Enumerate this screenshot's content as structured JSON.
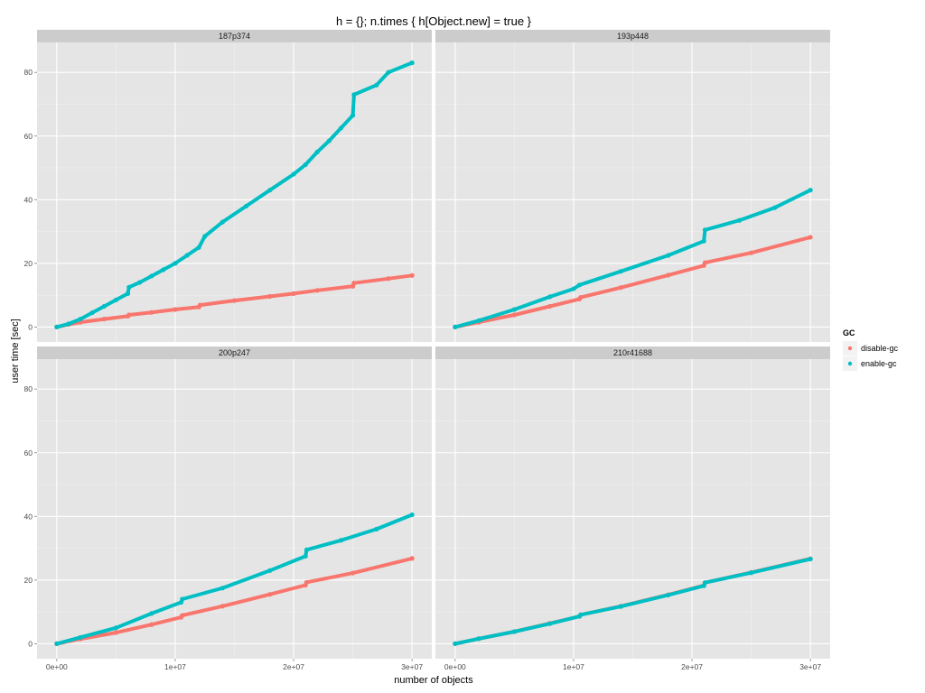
{
  "chart_data": {
    "type": "scatter",
    "title": "h = {}; n.times { h[Object.new] = true }",
    "xlabel": "number of objects",
    "ylabel": "user time [sec]",
    "xlim": [
      0,
      30000000
    ],
    "ylim": [
      0,
      90
    ],
    "x_ticks": [
      0,
      10000000,
      20000000,
      30000000
    ],
    "x_tick_labels": [
      "0e+00",
      "1e+07",
      "2e+07",
      "3e+07"
    ],
    "y_ticks": [
      0,
      20,
      40,
      60,
      80
    ],
    "y_tick_labels": [
      "0",
      "20",
      "40",
      "60",
      "80"
    ],
    "grid": true,
    "legend": {
      "title": "GC",
      "position": "right",
      "entries": [
        {
          "name": "disable-gc",
          "color": "#F8766D"
        },
        {
          "name": "enable-gc",
          "color": "#00BFC4"
        }
      ]
    },
    "facets": [
      {
        "label": "187p374",
        "series": [
          {
            "name": "disable-gc",
            "color": "#F8766D",
            "x": [
              0,
              1000000,
              2000000,
              4000000,
              6000000,
              6100000,
              8000000,
              10000000,
              12000000,
              12100000,
              15000000,
              18000000,
              20000000,
              22000000,
              25000000,
              25100000,
              28000000,
              30000000
            ],
            "y": [
              0,
              0.8,
              1.5,
              2.5,
              3.4,
              3.8,
              4.6,
              5.5,
              6.3,
              6.9,
              8.3,
              9.6,
              10.5,
              11.5,
              12.8,
              13.8,
              15.2,
              16.2
            ]
          },
          {
            "name": "enable-gc",
            "color": "#00BFC4",
            "x": [
              0,
              1000000,
              2000000,
              3000000,
              4000000,
              5000000,
              6000000,
              6100000,
              7000000,
              8000000,
              9000000,
              10000000,
              11000000,
              12000000,
              12500000,
              14000000,
              16000000,
              18000000,
              20000000,
              21000000,
              22000000,
              23000000,
              24000000,
              25000000,
              25100000,
              27000000,
              28000000,
              30000000
            ],
            "y": [
              0,
              1.0,
              2.5,
              4.5,
              6.5,
              8.5,
              10.5,
              12.5,
              14.0,
              16.0,
              18.0,
              20.0,
              22.5,
              25.0,
              28.5,
              33.0,
              38.0,
              43.0,
              48.0,
              51.0,
              55.0,
              58.5,
              62.5,
              66.5,
              73.0,
              76.0,
              80.0,
              83.0
            ]
          }
        ]
      },
      {
        "label": "193p448",
        "series": [
          {
            "name": "disable-gc",
            "color": "#F8766D",
            "x": [
              0,
              2000000,
              5000000,
              8000000,
              10500000,
              10600000,
              14000000,
              18000000,
              21000000,
              21100000,
              25000000,
              30000000
            ],
            "y": [
              0,
              1.5,
              3.8,
              6.5,
              8.8,
              9.3,
              12.4,
              16.3,
              19.3,
              20.2,
              23.3,
              28.2
            ]
          },
          {
            "name": "enable-gc",
            "color": "#00BFC4",
            "x": [
              0,
              2000000,
              5000000,
              8000000,
              10000000,
              10500000,
              14000000,
              18000000,
              21000000,
              21100000,
              24000000,
              27000000,
              30000000
            ],
            "y": [
              0,
              2.0,
              5.5,
              9.5,
              12.0,
              13.2,
              17.5,
              22.5,
              27.0,
              30.5,
              33.5,
              37.5,
              43.0
            ]
          }
        ]
      },
      {
        "label": "200p247",
        "series": [
          {
            "name": "disable-gc",
            "color": "#F8766D",
            "x": [
              0,
              2000000,
              5000000,
              8000000,
              10500000,
              10600000,
              14000000,
              18000000,
              21000000,
              21100000,
              25000000,
              30000000
            ],
            "y": [
              0,
              1.5,
              3.5,
              6.0,
              8.3,
              8.9,
              11.8,
              15.5,
              18.4,
              19.3,
              22.2,
              26.8
            ]
          },
          {
            "name": "enable-gc",
            "color": "#00BFC4",
            "x": [
              0,
              2000000,
              5000000,
              8000000,
              10500000,
              10600000,
              14000000,
              18000000,
              21000000,
              21100000,
              24000000,
              27000000,
              30000000
            ],
            "y": [
              0,
              2.0,
              5.0,
              9.5,
              13.0,
              14.0,
              17.5,
              23.0,
              27.5,
              29.5,
              32.5,
              36.0,
              40.5
            ]
          }
        ]
      },
      {
        "label": "210r41688",
        "series": [
          {
            "name": "disable-gc",
            "color": "#F8766D",
            "x": [
              0,
              2000000,
              5000000,
              8000000,
              10500000,
              10600000,
              14000000,
              18000000,
              21000000,
              21100000,
              25000000,
              30000000
            ],
            "y": [
              0,
              1.6,
              3.8,
              6.4,
              8.6,
              9.1,
              11.8,
              15.4,
              18.3,
              19.2,
              22.4,
              26.7
            ]
          },
          {
            "name": "enable-gc",
            "color": "#00BFC4",
            "x": [
              0,
              2000000,
              5000000,
              8000000,
              10500000,
              10600000,
              14000000,
              18000000,
              21000000,
              21100000,
              25000000,
              30000000
            ],
            "y": [
              0,
              1.6,
              3.8,
              6.3,
              8.6,
              9.1,
              11.7,
              15.3,
              18.2,
              19.2,
              22.3,
              26.6
            ]
          }
        ]
      }
    ]
  }
}
